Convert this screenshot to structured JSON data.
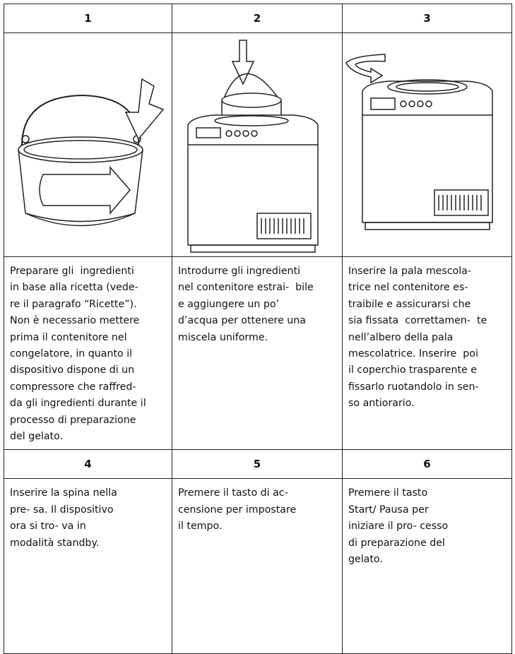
{
  "steps": [
    {
      "number": "1",
      "lines": [
        "Preparare gli  ingredienti",
        "in base alla ricetta (vede-",
        "re il paragrafo “Ricette”).",
        "Non è necessario mettere",
        "prima il contenitore nel",
        "congelatore, in quanto il",
        "dispositivo dispone di un",
        "compressore che raffred-",
        "da gli ingredienti durante il",
        "processo di preparazione",
        "del gelato."
      ]
    },
    {
      "number": "2",
      "lines": [
        "Introdurre gli ingredienti",
        "nel contenitore estrai-  bile",
        "e aggiungere un po’",
        "d’acqua per ottenere una",
        "miscela uniforme."
      ]
    },
    {
      "number": "3",
      "lines": [
        "Inserire la pala mescola-",
        "trice nel contenitore es-",
        "traibile e assicurarsi che",
        "sia fissata  correttamen-  te",
        "nell’albero della pala",
        "mescolatrice. Inserire  poi",
        "il coperchio trasparente e",
        "fissarlo ruotandolo in sen-",
        "so antiorario."
      ]
    },
    {
      "number": "4",
      "lines": [
        "Inserire la spina nella",
        "pre- sa. Il dispositivo",
        "ora si tro- va in",
        "modalità standby."
      ]
    },
    {
      "number": "5",
      "lines": [
        "Premere il tasto di ac-",
        "censione per impostare",
        "il tempo."
      ]
    },
    {
      "number": "6",
      "lines": [
        "Premere il tasto",
        "Start/ Pausa per",
        "iniziare il pro- cesso",
        "di preparazione del",
        "gelato."
      ]
    }
  ]
}
